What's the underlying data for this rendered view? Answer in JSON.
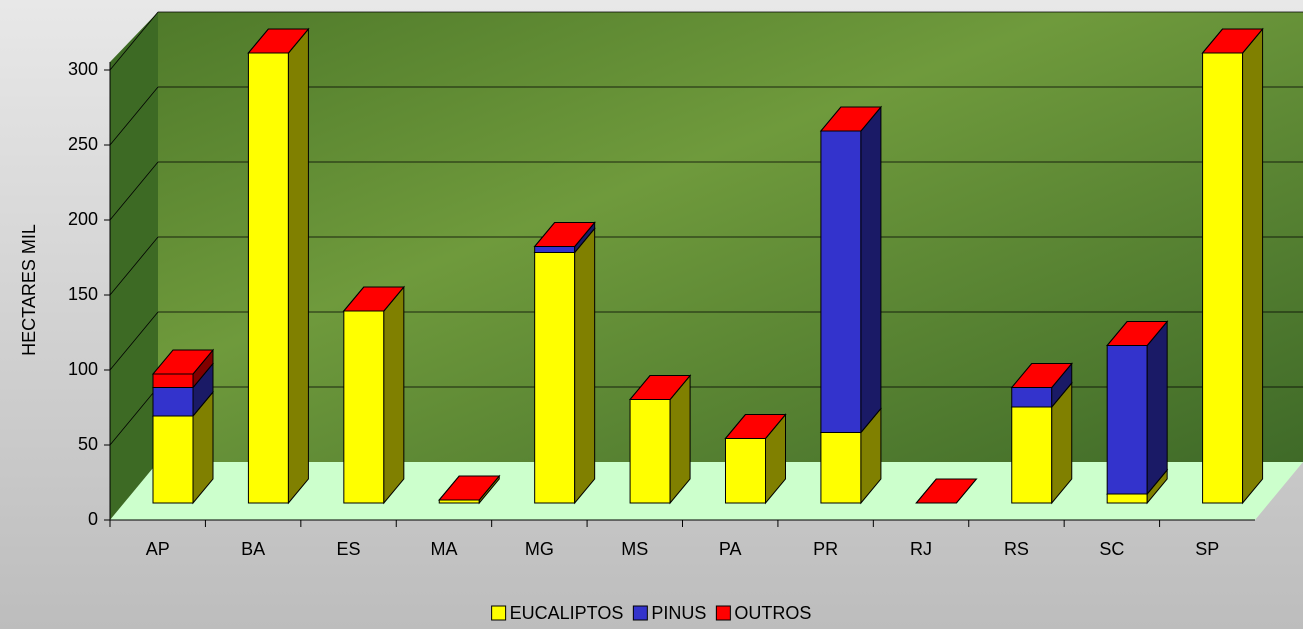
{
  "chart_data": {
    "type": "bar3d",
    "y_label": "HECTARES MIL",
    "categories": [
      "AP",
      "BA",
      "ES",
      "MA",
      "MG",
      "MS",
      "PA",
      "PR",
      "RJ",
      "RS",
      "SC",
      "SP"
    ],
    "series": [
      {
        "name": "EUCALIPTOS",
        "color": "#ffff00",
        "values": [
          58,
          300,
          128,
          2,
          167,
          69,
          43,
          47,
          0,
          64,
          6,
          300
        ]
      },
      {
        "name": "PINUS",
        "color": "#3333cc",
        "values": [
          19,
          0,
          0,
          0,
          4,
          0,
          0,
          201,
          0,
          13,
          99,
          0
        ]
      },
      {
        "name": "OUTROS",
        "color": "#ff0000",
        "values": [
          9,
          0,
          0,
          0,
          0,
          0,
          0,
          0,
          0,
          0,
          0,
          0
        ]
      }
    ],
    "ylim": [
      0,
      300
    ],
    "yticks": [
      0,
      50,
      100,
      150,
      200,
      250,
      300
    ],
    "grid": true,
    "stacked": true,
    "legend": "bottom"
  }
}
